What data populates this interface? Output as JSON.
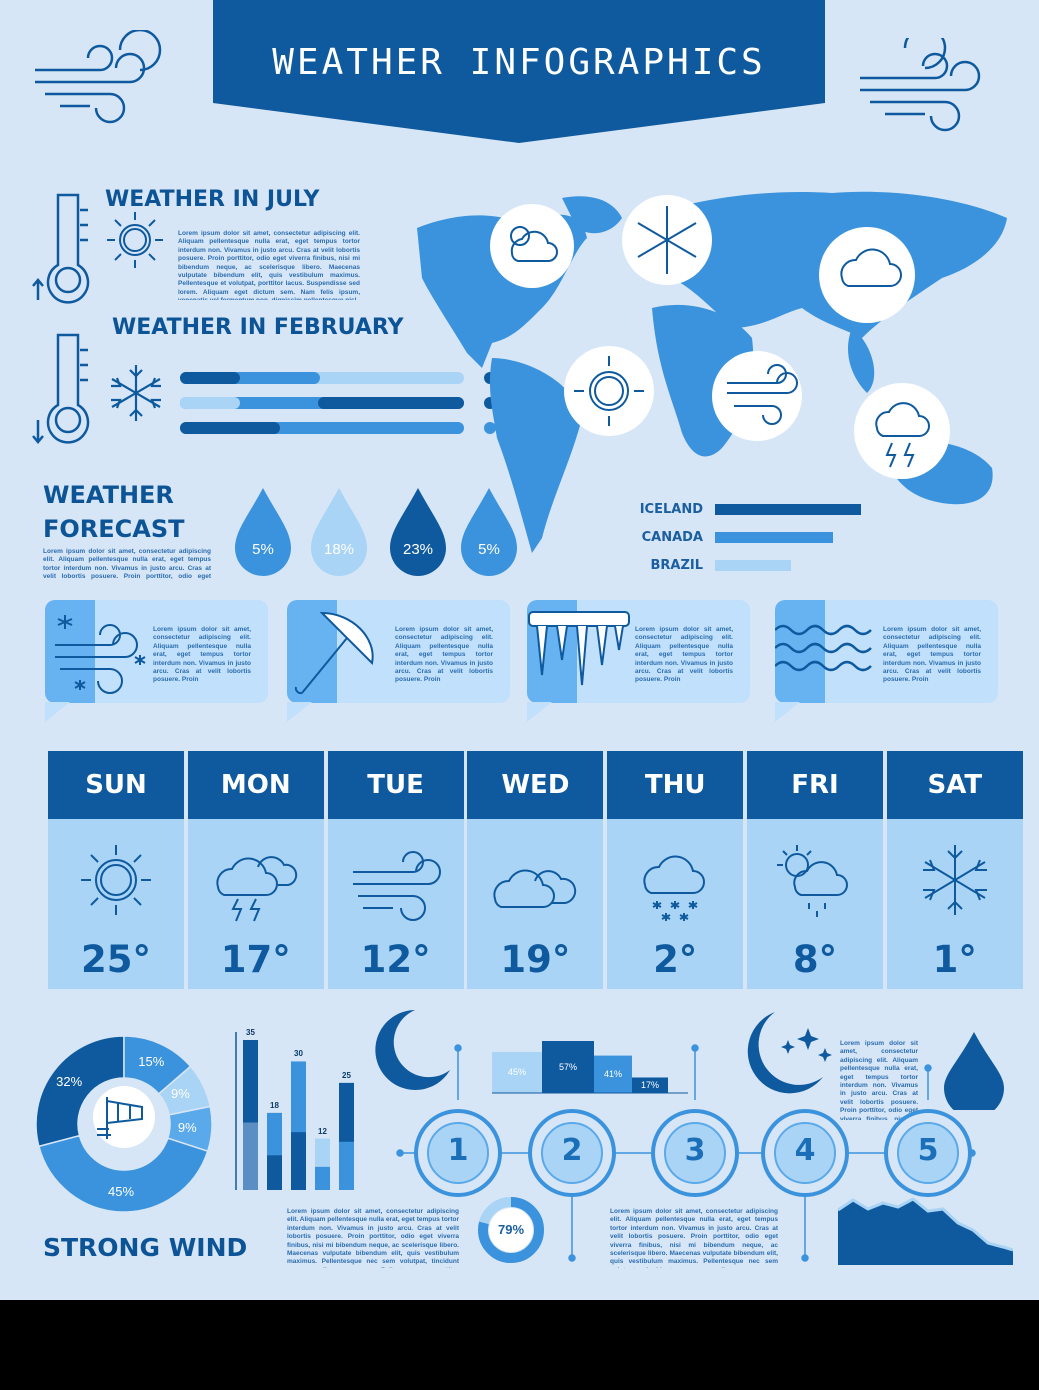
{
  "title": "WEATHER INFOGRAPHICS",
  "sections": {
    "july_title": "WEATHER IN JULY",
    "february_title": "WEATHER IN FEBRUARY",
    "forecast_title_1": "WEATHER",
    "forecast_title_2": "FORECAST",
    "strong_wind": "STRONG WIND"
  },
  "lorem": {
    "july": "Lorem ipsum dolor sit amet, consectetur adipiscing elit. Aliquam pellentesque nulla erat, eget tempus tortor interdum non. Vivamus in justo arcu. Cras at velit lobortis posuere. Proin porttitor, odio eget viverra finibus, nisi mi bibendum neque, ac scelerisque libero. Maecenas vulputate bibendum elit, quis vestibulum maximus. Pellentesque et volutpat, porttitor lacus. Suspendisse sed lorem. Aliquam eget dictum sem. Nam felis ipsum, venenatis vel fermentum non, dignissim pellentesque nisl.",
    "forecast": "Lorem ipsum dolor sit amet, consectetur adipiscing elit. Aliquam pellentesque nulla erat, eget tempus tortor interdum non. Vivamus in justo arcu. Cras at velit lobortis posuere. Proin porttitor, odio eget viverra finibus, nisi mi bibendum neque, ac scelerisque",
    "bubble": "Lorem ipsum dolor sit amet, consectetur adipiscing elit. Aliquam pellentesque nulla erat, eget tempus tortor interdum non. Vivamus in justo arcu. Cras at velit lobortis posuere. Proin",
    "right": "Lorem ipsum dolor sit amet, consectetur adipiscing elit. Aliquam pellentesque nulla erat, eget tempus tortor interdum non. Vivamus in justo arcu. Cras at velit lobortis posuere. Proin porttitor, odio eget viverra finibus, nisi mi bibendum neque, ac scelerisque libero. Maecenas vulputate bibendum elit, quis vestibulum",
    "bottom": "Lorem ipsum dolor sit amet, consectetur adipiscing elit. Aliquam pellentesque nulla erat, eget tempus tortor interdum non. Vivamus in justo arcu. Cras at velit lobortis posuere. Proin porttitor, odio eget viverra finibus, nisi mi bibendum neque, ac scelerisque libero. Maecenas vulputate bibendum elit, quis vestibulum maximus. Pellentesque nec sem volutpat, tincidunt eros eu, ullamcorper urna. Pellentesque a porttitor lacus. Suspendisse id lorem. Aliquam egestas enim vel, ullamcorper urna. Pellentesque a porttitor lacus. Suspendisse sed libero. Praesent non dignissim ipsum dui."
  },
  "drops": [
    "5%",
    "18%",
    "23%",
    "5%"
  ],
  "countries": [
    "ICELAND",
    "CANADA",
    "BRAZIL"
  ],
  "days": [
    {
      "day": "SUN",
      "temp": "25°",
      "icon": "sun-icon"
    },
    {
      "day": "MON",
      "temp": "17°",
      "icon": "thunderstorm-icon"
    },
    {
      "day": "TUE",
      "temp": "12°",
      "icon": "wind-icon"
    },
    {
      "day": "WED",
      "temp": "19°",
      "icon": "cloud-icon"
    },
    {
      "day": "THU",
      "temp": "2°",
      "icon": "snow-cloud-icon"
    },
    {
      "day": "FRI",
      "temp": "8°",
      "icon": "sun-rain-icon"
    },
    {
      "day": "SAT",
      "temp": "1°",
      "icon": "snowflake-icon"
    }
  ],
  "steps": [
    "1",
    "2",
    "3",
    "4",
    "5"
  ],
  "progress_79": "79%",
  "colors": {
    "dark": "#0f5a9e",
    "mid": "#3b93dd",
    "light": "#a9d4f5",
    "bg": "#d6e6f7"
  },
  "chart_data": [
    {
      "type": "pie",
      "labels": [
        "32%",
        "15%",
        "9%",
        "9%",
        "45%"
      ],
      "values": [
        32,
        15,
        9,
        9,
        45
      ]
    },
    {
      "type": "bar",
      "categories": [
        "1",
        "2",
        "3",
        "4",
        "5"
      ],
      "values": [
        35,
        18,
        30,
        12,
        25
      ],
      "labels": [
        "35",
        "18",
        "30",
        "12",
        "25"
      ]
    },
    {
      "type": "bar",
      "categories": [
        "1",
        "2",
        "3",
        "4"
      ],
      "values": [
        45,
        57,
        41,
        17
      ],
      "labels": [
        "45%",
        "57%",
        "41%",
        "17%"
      ]
    }
  ]
}
